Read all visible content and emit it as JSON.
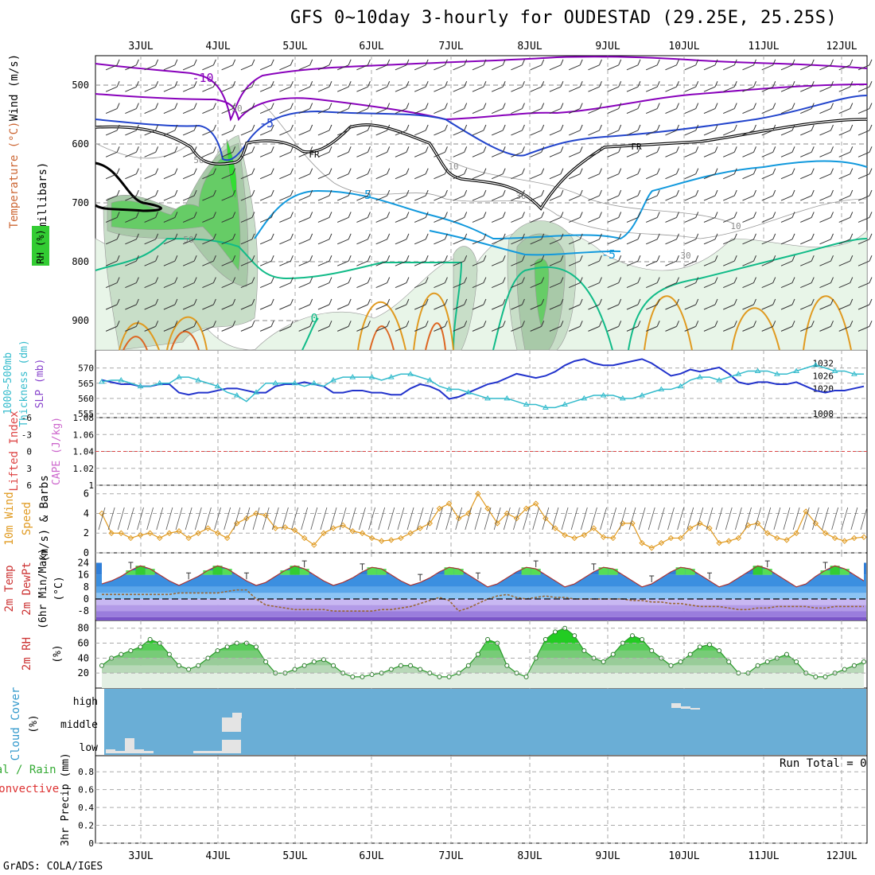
{
  "title": "GFS 0~10day 3-hourly for OUDESTAD (29.25E, 25.25S)",
  "footer": "GrADS: COLA/IGES",
  "run_total": "Run Total = 0",
  "colors": {
    "rh_green": "#33cc33",
    "temp_purple": "#8800bb",
    "temp_blue": "#2244cc",
    "temp_sky": "#1199dd",
    "temp_teal": "#11bb88",
    "temp_orange": "#e09a20",
    "slp_line": "#2233cc",
    "thickness_line": "#33bbcc",
    "wind10m": "#e09a20",
    "cloud_bg": "#6aaed6",
    "temp_band_warm": "#2c7fd6",
    "temp_band_cold": "#9966dd"
  },
  "chart_data": {
    "type": "line",
    "x_axis": {
      "labels": [
        "3JUL",
        "4JUL",
        "5JUL",
        "6JUL",
        "7JUL",
        "8JUL",
        "9JUL",
        "10JUL",
        "11JUL",
        "12JUL"
      ],
      "range_days": [
        0,
        10
      ]
    },
    "panels": [
      {
        "name": "upper_air",
        "ylabel_parts": [
          "Wind (m/s)",
          "Temperature (°C)",
          "RH (%)",
          "(millibars)"
        ],
        "y_ticks": [
          "500",
          "600",
          "700",
          "800",
          "900"
        ],
        "contour_labels": [
          "-10",
          "-5",
          "-5",
          "-5",
          "0",
          "FR",
          "FR",
          "30",
          "50",
          "50",
          "30",
          "10",
          "10",
          "30"
        ]
      },
      {
        "name": "thickness_slp",
        "ylabel_parts": [
          "1000~500mb",
          "Thickness (dm)",
          "SLP (mb)"
        ],
        "y_ticks_left": [
          "555",
          "560",
          "565",
          "570"
        ],
        "y_ticks_right": [
          "1008",
          "1020",
          "1026",
          "1032"
        ],
        "slp_series": [
          1024,
          1023,
          1022,
          1022,
          1021,
          1021,
          1022,
          1022,
          1018,
          1017,
          1018,
          1018,
          1019,
          1020,
          1020,
          1019,
          1018,
          1018,
          1021,
          1022,
          1022,
          1023,
          1022,
          1021,
          1018,
          1018,
          1019,
          1019,
          1018,
          1018,
          1017,
          1017,
          1020,
          1022,
          1021,
          1019,
          1015,
          1016,
          1018,
          1020,
          1022,
          1023,
          1025,
          1027,
          1026,
          1025,
          1026,
          1028,
          1031,
          1033,
          1034,
          1032,
          1031,
          1031,
          1032,
          1033,
          1034,
          1032,
          1029,
          1026,
          1027,
          1029,
          1028,
          1029,
          1030,
          1027,
          1023,
          1022,
          1023,
          1023,
          1022,
          1022,
          1023,
          1021,
          1019,
          1018,
          1019,
          1019,
          1020,
          1021
        ],
        "thickness_series": [
          565.5,
          566,
          566,
          565,
          564,
          564,
          565,
          565,
          567,
          567,
          566,
          565,
          564,
          562,
          561,
          559,
          562,
          565,
          565,
          565,
          565,
          564,
          565,
          564,
          566,
          567,
          567,
          567,
          567,
          566,
          567,
          568,
          568,
          567,
          566,
          564,
          563,
          563,
          562,
          561,
          560,
          560,
          560,
          559,
          558,
          558,
          557,
          557,
          558,
          559,
          560,
          561,
          561,
          561,
          560,
          560,
          561,
          562,
          563,
          563,
          564,
          566,
          567,
          567,
          566,
          567,
          568,
          569,
          569,
          569,
          568,
          568,
          569,
          570,
          571,
          570,
          569,
          569,
          568,
          568
        ]
      },
      {
        "name": "li_cape",
        "ylabel_parts": [
          "Lifted Index",
          "CAPE (J/kg)"
        ],
        "y_ticks_left": [
          "-6",
          "-3",
          "0",
          "3",
          "6"
        ],
        "y_ticks_right": [
          "1",
          "1.02",
          "1.04",
          "1.06",
          "1.08"
        ]
      },
      {
        "name": "wind10m",
        "ylabel_parts": [
          "10m Wind",
          "Speed",
          "(m/s) & Barbs"
        ],
        "y_ticks": [
          "0",
          "2",
          "4",
          "6"
        ],
        "speed_series": [
          4,
          2,
          2,
          1.5,
          1.8,
          2,
          1.5,
          2,
          2.2,
          1.5,
          2,
          2.5,
          2,
          1.5,
          3,
          3.5,
          4,
          3.8,
          2.5,
          2.6,
          2.3,
          1.5,
          0.8,
          2,
          2.5,
          2.8,
          2.2,
          2,
          1.5,
          1.2,
          1.3,
          1.5,
          2,
          2.5,
          3,
          4.5,
          5,
          3.5,
          4,
          6,
          4.5,
          3,
          4,
          3.5,
          4.5,
          5,
          3.5,
          2.5,
          1.8,
          1.5,
          1.8,
          2.5,
          1.6,
          1.5,
          3,
          3,
          1,
          0.5,
          1,
          1.5,
          1.5,
          2.5,
          3,
          2.5,
          1,
          1.2,
          1.5,
          2.8,
          3,
          2,
          1.5,
          1.3,
          2,
          4.2,
          3,
          2,
          1.5,
          1.2,
          1.5,
          1.6
        ]
      },
      {
        "name": "temp2m",
        "ylabel_parts": [
          "2m Temp",
          "2m DewPt",
          "(6hr Min/Max)",
          "(°C)"
        ],
        "y_ticks": [
          "-8",
          "0",
          "8",
          "16",
          "24"
        ],
        "temp_series": [
          10,
          12,
          15,
          19,
          22,
          20,
          16,
          12,
          9,
          12,
          15,
          19,
          22,
          20,
          16,
          12,
          9,
          11,
          15,
          19,
          22,
          20,
          16,
          12,
          9,
          11,
          14,
          18,
          21,
          20,
          16,
          12,
          9,
          11,
          14,
          18,
          21,
          20,
          16,
          12,
          8,
          10,
          14,
          18,
          21,
          20,
          16,
          12,
          8,
          10,
          14,
          18,
          21,
          20,
          16,
          12,
          8,
          10,
          14,
          18,
          21,
          20,
          16,
          12,
          8,
          10,
          14,
          18,
          22,
          20,
          16,
          12,
          8,
          10,
          15,
          19,
          22,
          20,
          16,
          12
        ],
        "dewpt_series": [
          3,
          3,
          3,
          3,
          3,
          3,
          3,
          3,
          4,
          4,
          4,
          4,
          4,
          5,
          6,
          6,
          0,
          -4,
          -5,
          -6,
          -7,
          -7,
          -7,
          -7,
          -8,
          -8,
          -8,
          -8,
          -8,
          -7,
          -7,
          -6,
          -5,
          -3,
          -1,
          1,
          -1,
          -8,
          -6,
          -3,
          0,
          2,
          3,
          1,
          0,
          1,
          2,
          1,
          1,
          0,
          0,
          0,
          0,
          0,
          0,
          -1,
          -1,
          -2,
          -2,
          -3,
          -3,
          -4,
          -5,
          -5,
          -5,
          -6,
          -7,
          -7,
          -6,
          -6,
          -5,
          -5,
          -5,
          -5,
          -6,
          -6,
          -5,
          -5,
          -5,
          -5
        ]
      },
      {
        "name": "rh2m",
        "ylabel_parts": [
          "2m RH",
          "(%)"
        ],
        "y_ticks": [
          "20",
          "40",
          "60",
          "80"
        ],
        "rh_series": [
          30,
          40,
          45,
          50,
          55,
          65,
          60,
          45,
          30,
          25,
          30,
          40,
          50,
          55,
          60,
          60,
          55,
          35,
          20,
          20,
          25,
          30,
          35,
          38,
          30,
          20,
          15,
          15,
          18,
          20,
          25,
          30,
          30,
          25,
          20,
          15,
          15,
          20,
          30,
          45,
          65,
          60,
          30,
          20,
          15,
          40,
          65,
          75,
          80,
          70,
          50,
          40,
          35,
          45,
          60,
          70,
          65,
          50,
          40,
          30,
          35,
          45,
          55,
          58,
          50,
          35,
          20,
          20,
          30,
          35,
          40,
          45,
          35,
          20,
          15,
          15,
          20,
          25,
          30,
          35
        ]
      },
      {
        "name": "cloud",
        "ylabel_parts": [
          "Cloud Cover",
          "(%)"
        ],
        "level_labels": [
          "high",
          "middle",
          "low"
        ]
      },
      {
        "name": "precip",
        "ylabel_parts": [
          "Total / Rain",
          "Convective",
          "3hr Precip (mm)"
        ],
        "y_ticks": [
          "0",
          "0.2",
          "0.4",
          "0.6",
          "0.8"
        ]
      }
    ]
  }
}
